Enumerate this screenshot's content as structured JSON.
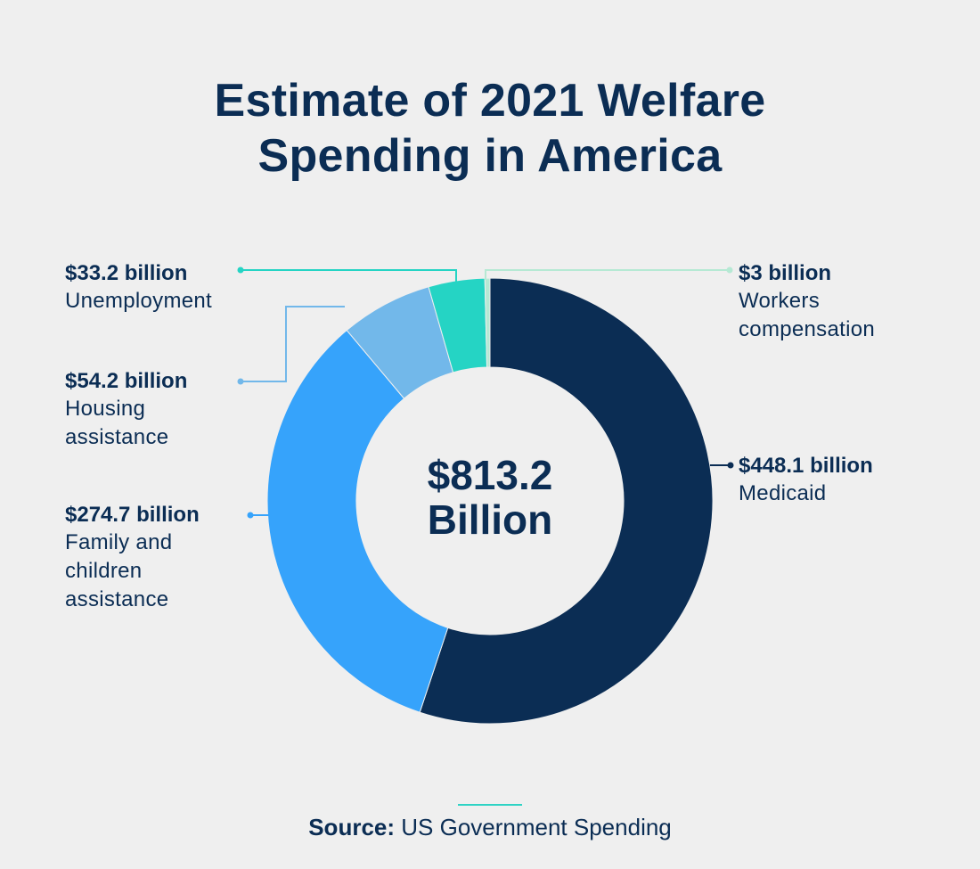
{
  "chart_data": {
    "type": "pie",
    "variant": "donut",
    "title": [
      "Estimate of 2021 Welfare",
      "Spending in America"
    ],
    "center_label": [
      "$813.2",
      "Billion"
    ],
    "total": 813.2,
    "unit": "billion USD",
    "slices": [
      {
        "name": "Medicaid",
        "value": 448.1,
        "value_label": "$448.1 billion",
        "color": "#0b2d54"
      },
      {
        "name": "Family and children assistance",
        "value": 274.7,
        "value_label": "$274.7 billion",
        "color": "#36a3fb"
      },
      {
        "name": "Housing assistance",
        "value": 54.2,
        "value_label": "$54.2 billion",
        "color": "#72b8ea"
      },
      {
        "name": "Unemployment",
        "value": 33.2,
        "value_label": "$33.2 billion",
        "color": "#25d4c4"
      },
      {
        "name": "Workers compensation",
        "value": 3,
        "value_label": "$3 billion",
        "color": "#b6e9d4"
      }
    ]
  },
  "labels": {
    "unemployment": {
      "value": "$33.2 billion",
      "name_lines": [
        "Unemployment"
      ]
    },
    "housing": {
      "value": "$54.2 billion",
      "name_lines": [
        "Housing",
        "assistance"
      ]
    },
    "family": {
      "value": "$274.7 billion",
      "name_lines": [
        "Family and",
        "children",
        "assistance"
      ]
    },
    "workers": {
      "value": "$3 billion",
      "name_lines": [
        "Workers",
        "compensation"
      ]
    },
    "medicaid": {
      "value": "$448.1 billion",
      "name_lines": [
        "Medicaid"
      ]
    }
  },
  "source": {
    "prefix": "Source:",
    "text": " US Government Spending"
  },
  "colors": {
    "background": "#efefef",
    "text": "#0b2d54",
    "accent_rule": "#2ed3c4"
  }
}
